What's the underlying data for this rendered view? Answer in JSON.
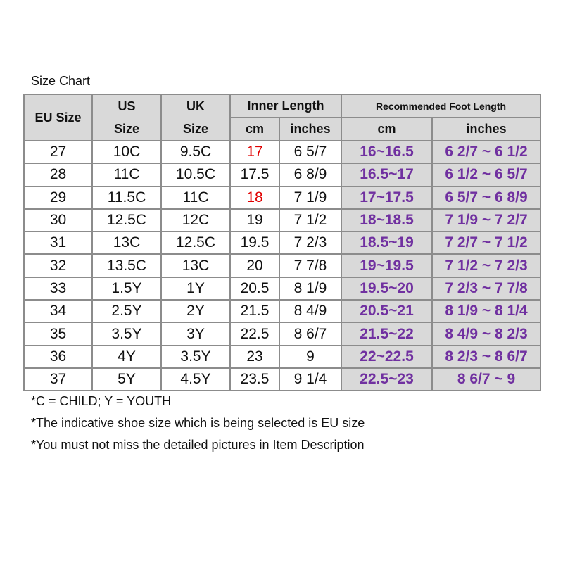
{
  "title": "Size Chart",
  "header": {
    "eu": "EU Size",
    "us": [
      "US",
      "Size"
    ],
    "uk": [
      "UK",
      "Size"
    ],
    "inner": "Inner Length",
    "recommended": "Recommended Foot Length",
    "sub": [
      "cm",
      "inches",
      "cm",
      "inches"
    ]
  },
  "rows": [
    [
      "27",
      "10C",
      "9.5C",
      "17",
      "6 5/7",
      "16~16.5",
      "6 2/7 ~ 6 1/2"
    ],
    [
      "28",
      "11C",
      "10.5C",
      "17.5",
      "6 8/9",
      "16.5~17",
      "6 1/2 ~ 6 5/7"
    ],
    [
      "29",
      "11.5C",
      "11C",
      "18",
      "7 1/9",
      "17~17.5",
      "6 5/7 ~ 6 8/9"
    ],
    [
      "30",
      "12.5C",
      "12C",
      "19",
      "7 1/2",
      "18~18.5",
      "7 1/9 ~ 7 2/7"
    ],
    [
      "31",
      "13C",
      "12.5C",
      "19.5",
      "7 2/3",
      "18.5~19",
      "7 2/7 ~ 7 1/2"
    ],
    [
      "32",
      "13.5C",
      "13C",
      "20",
      "7 7/8",
      "19~19.5",
      "7 1/2 ~ 7 2/3"
    ],
    [
      "33",
      "1.5Y",
      "1Y",
      "20.5",
      "8 1/9",
      "19.5~20",
      "7 2/3 ~ 7 7/8"
    ],
    [
      "34",
      "2.5Y",
      "2Y",
      "21.5",
      "8 4/9",
      "20.5~21",
      "8 1/9 ~ 8 1/4"
    ],
    [
      "35",
      "3.5Y",
      "3Y",
      "22.5",
      "8 6/7",
      "21.5~22",
      "8 4/9 ~ 8 2/3"
    ],
    [
      "36",
      "4Y",
      "3.5Y",
      "23",
      "9",
      "22~22.5",
      "8 2/3 ~ 8 6/7"
    ],
    [
      "37",
      "5Y",
      "4.5Y",
      "23.5",
      "9 1/4",
      "22.5~23",
      "8 6/7 ~ 9"
    ]
  ],
  "notes": [
    "*C = CHILD; Y = YOUTH",
    "*The indicative shoe size which is being selected is EU size",
    "*You must not miss the detailed pictures in Item Description"
  ]
}
